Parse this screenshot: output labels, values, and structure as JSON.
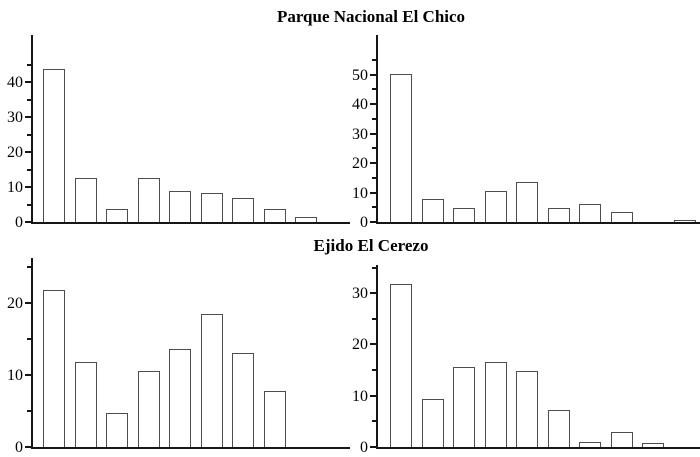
{
  "figure": {
    "background": "#ffffff",
    "colors": {
      "axis": "#161616",
      "bar_fill": "#ffffff",
      "bar_border": "#4d4d4d",
      "text": "#000000"
    }
  },
  "chart_data": [
    {
      "row": 1,
      "title": "Parque Nacional El Chico",
      "panels": [
        {
          "type": "bar",
          "position": "left",
          "values": [
            43.7,
            12.6,
            3.6,
            12.6,
            8.9,
            8.2,
            7.0,
            3.6,
            1.4,
            0
          ],
          "ylim": [
            0,
            53.5
          ],
          "yticks_major": [
            0,
            10,
            20,
            30,
            40
          ],
          "yticks_minor": [
            5,
            15,
            25,
            35,
            45
          ],
          "xlabel": "",
          "ylabel": "",
          "grid": false,
          "legend": "none",
          "x_tick_labels": "none"
        },
        {
          "type": "bar",
          "position": "right",
          "values": [
            50.3,
            7.8,
            4.6,
            10.4,
            13.6,
            4.6,
            6.1,
            3.5,
            0,
            0.7
          ],
          "ylim": [
            0,
            63.5
          ],
          "yticks_major": [
            0,
            10,
            20,
            30,
            40,
            50
          ],
          "yticks_minor": [
            5,
            15,
            25,
            35,
            45,
            55
          ],
          "xlabel": "",
          "ylabel": "",
          "grid": false,
          "legend": "none",
          "x_tick_labels": "none"
        }
      ]
    },
    {
      "row": 2,
      "title": "Ejido El Cerezo",
      "panels": [
        {
          "type": "bar",
          "position": "left",
          "values": [
            21.8,
            11.8,
            4.7,
            10.5,
            13.6,
            18.4,
            13.1,
            7.8,
            0,
            0
          ],
          "ylim": [
            0,
            26.2
          ],
          "yticks_major": [
            0,
            10,
            20
          ],
          "yticks_minor": [
            5,
            15,
            25
          ],
          "xlabel": "",
          "ylabel": "",
          "grid": false,
          "legend": "none",
          "x_tick_labels": "none"
        },
        {
          "type": "bar",
          "position": "right",
          "values": [
            31.8,
            9.3,
            15.6,
            16.5,
            14.9,
            7.3,
            1.0,
            2.9,
            0.7,
            0
          ],
          "ylim": [
            0,
            35.5
          ],
          "yticks_major": [
            0,
            10,
            20,
            30
          ],
          "yticks_minor": [
            5,
            15,
            25,
            35
          ],
          "xlabel": "",
          "ylabel": "",
          "grid": false,
          "legend": "none",
          "x_tick_labels": "none"
        }
      ]
    }
  ]
}
